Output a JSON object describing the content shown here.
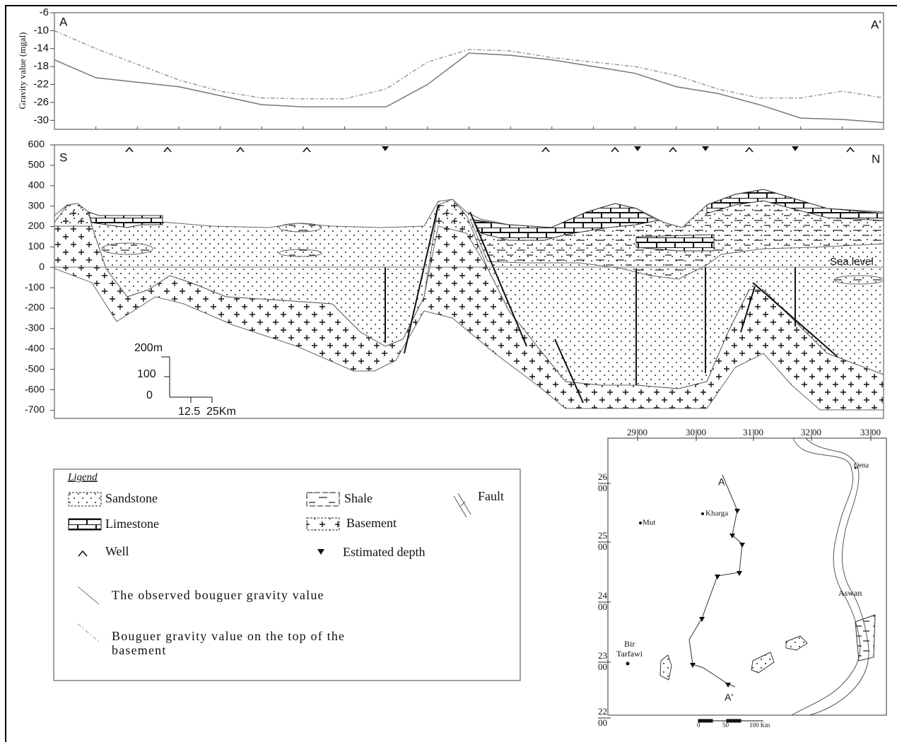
{
  "chart_data": [
    {
      "type": "line",
      "y_label": "Gravity value (mgal)",
      "start_label": "A",
      "end_label": "A'",
      "ylim": [
        -32,
        -6
      ],
      "yticks": [
        -6,
        -10,
        -14,
        -18,
        -22,
        -26,
        -30
      ],
      "series": [
        {
          "name": "The observed bouguer gravity value",
          "color": "#777777",
          "dashed": false,
          "values": [
            -16.5,
            -20.5,
            -21.5,
            -22.5,
            -24.5,
            -26.5,
            -27,
            -27,
            -27,
            -22,
            -15,
            -15.5,
            -16.5,
            -18,
            -19.5,
            -22.5,
            -24,
            -26.5,
            -29.5,
            -29.8,
            -30.5
          ]
        },
        {
          "name": "Bouguer gravity value on the top of the basement",
          "color": "#999999",
          "dashed": true,
          "values": [
            -10,
            -14,
            -17.5,
            -21,
            -23.5,
            -25,
            -25.2,
            -25.2,
            -23,
            -17,
            -14.2,
            -14.5,
            -16,
            -17,
            -18,
            -20,
            -23,
            -25,
            -25,
            -23.5,
            -25
          ]
        }
      ]
    },
    {
      "type": "section",
      "start_label": "S",
      "end_label": "N",
      "sea_level_label": "Sea level",
      "ylim": [
        -740,
        600
      ],
      "yticks": [
        600,
        500,
        400,
        300,
        200,
        100,
        0,
        -100,
        -200,
        -300,
        -400,
        -500,
        -600,
        -700
      ],
      "scale_bar": {
        "vertical": [
          "200m",
          "100",
          "0"
        ],
        "horizontal": [
          "12.5",
          "25Km"
        ]
      }
    }
  ],
  "legend": {
    "title": "Ligend",
    "items": [
      "Sandstone",
      "Shale",
      "Fault",
      "Limestone",
      "Basement",
      "Well",
      "Estimated depth"
    ]
  },
  "map": {
    "lon_labels": [
      {
        "deg": "29",
        "min": "00"
      },
      {
        "deg": "30",
        "min": "00"
      },
      {
        "deg": "31",
        "min": "00"
      },
      {
        "deg": "32",
        "min": "00"
      },
      {
        "deg": "33",
        "min": "00"
      }
    ],
    "lat_labels": [
      {
        "deg": "26",
        "min": "00"
      },
      {
        "deg": "25",
        "min": "00"
      },
      {
        "deg": "24",
        "min": "00"
      },
      {
        "deg": "23",
        "min": "00"
      },
      {
        "deg": "22",
        "min": "00"
      }
    ],
    "places": [
      "Qena",
      "Kharga",
      "Mut",
      "Aswan",
      "Bir",
      "Tarfawi"
    ],
    "profile_start": "A",
    "profile_end": "A'",
    "scale": [
      "0",
      "50",
      "100 Km"
    ]
  }
}
